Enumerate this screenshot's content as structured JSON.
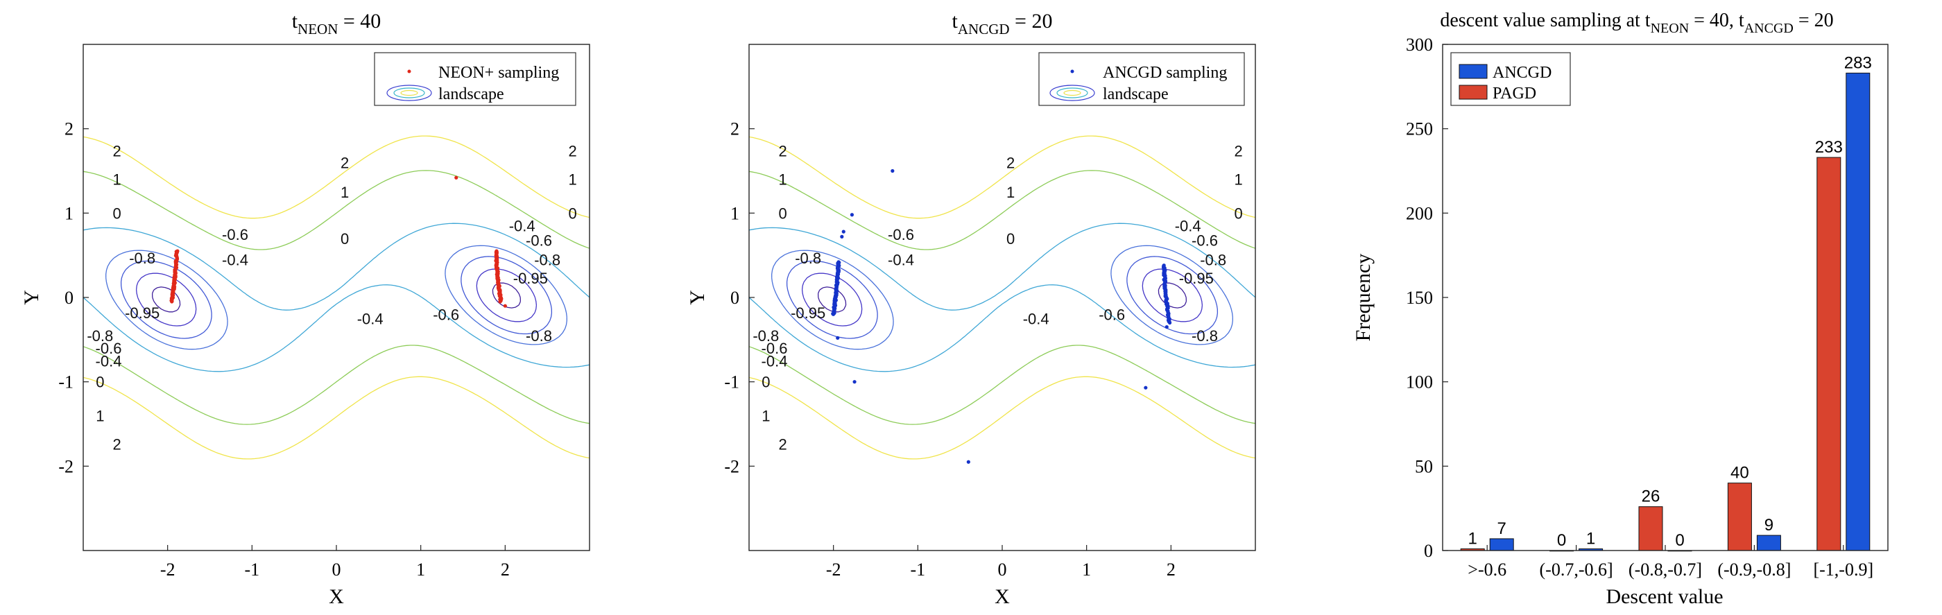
{
  "chart_data": [
    {
      "type": "contour",
      "title_main": "t",
      "title_sub": "NEON",
      "title_rest": " = 40",
      "xlabel": "X",
      "ylabel": "Y",
      "xlim": [
        -3,
        3
      ],
      "ylim": [
        -3,
        3
      ],
      "xticks": [
        -2,
        -1,
        0,
        1,
        2
      ],
      "yticks": [
        -2,
        -1,
        0,
        1,
        2
      ],
      "xtick_labels": [
        "-2",
        "-1",
        "0",
        "1",
        "2"
      ],
      "ytick_labels": [
        "-2",
        "-1",
        "0",
        "1",
        "2"
      ],
      "legend": [
        {
          "label": "NEON+ sampling",
          "color": "#e0281a"
        },
        {
          "label": "landscape",
          "color": "#5b6fd6"
        }
      ],
      "contour_level_labels": [
        "2",
        "2",
        "2",
        "2",
        "1",
        "1",
        "1",
        "1",
        "0",
        "0",
        "0",
        "0",
        "-0.4",
        "-0.4",
        "-0.4",
        "-0.4",
        "-0.6",
        "-0.6",
        "-0.6",
        "-0.6",
        "-0.8",
        "-0.8",
        "-0.8",
        "-0.8",
        "-0.95",
        "-0.95"
      ],
      "samples": {
        "color": "#e0281a",
        "clusters": [
          {
            "x0": -1.95,
            "y_from": -0.05,
            "y_to": 0.55
          },
          {
            "x0": 1.95,
            "y_from": -0.05,
            "y_to": 0.55
          }
        ],
        "points": [
          [
            1.42,
            1.42
          ],
          [
            2.0,
            -0.1
          ]
        ]
      }
    },
    {
      "type": "contour",
      "title_main": "t",
      "title_sub": "ANCGD",
      "title_rest": " = 20",
      "xlabel": "X",
      "ylabel": "Y",
      "xlim": [
        -3,
        3
      ],
      "ylim": [
        -3,
        3
      ],
      "xticks": [
        -2,
        -1,
        0,
        1,
        2
      ],
      "yticks": [
        -2,
        -1,
        0,
        1,
        2
      ],
      "xtick_labels": [
        "-2",
        "-1",
        "0",
        "1",
        "2"
      ],
      "ytick_labels": [
        "-2",
        "-1",
        "0",
        "1",
        "2"
      ],
      "legend": [
        {
          "label": "ANCGD sampling",
          "color": "#1533c9"
        },
        {
          "label": "landscape",
          "color": "#5b6fd6"
        }
      ],
      "contour_level_labels": [
        "2",
        "2",
        "2",
        "2",
        "1",
        "1",
        "1",
        "1",
        "0",
        "0",
        "0",
        "0",
        "-0.4",
        "-0.4",
        "-0.4",
        "-0.4",
        "-0.6",
        "-0.6",
        "-0.6",
        "-0.6",
        "-0.8",
        "-0.8",
        "-0.8",
        "-0.8",
        "-0.95",
        "-0.95"
      ],
      "samples": {
        "color": "#1533c9",
        "clusters": [
          {
            "x0": -2.0,
            "y_from": -0.2,
            "y_to": 0.42
          },
          {
            "x0": 1.98,
            "y_from": -0.3,
            "y_to": 0.38
          }
        ],
        "points": [
          [
            -1.3,
            1.5
          ],
          [
            -1.78,
            0.98
          ],
          [
            -1.88,
            0.78
          ],
          [
            -1.9,
            0.72
          ],
          [
            -1.95,
            -0.48
          ],
          [
            -1.75,
            -1.0
          ],
          [
            -0.4,
            -1.95
          ],
          [
            1.7,
            -1.07
          ],
          [
            1.95,
            -0.35
          ]
        ]
      }
    },
    {
      "type": "bar",
      "title_main": "descent value sampling at t",
      "title_sub1": "NEON",
      "title_mid": " = 40, t",
      "title_sub2": "ANCGD",
      "title_rest": " = 20",
      "xlabel": "Descent value",
      "ylabel": "Frequency",
      "ylim": [
        0,
        300
      ],
      "yticks": [
        0,
        50,
        100,
        150,
        200,
        250,
        300
      ],
      "ytick_labels": [
        "0",
        "50",
        "100",
        "150",
        "200",
        "250",
        "300"
      ],
      "categories": [
        ">-0.6",
        "(-0.7,-0.6]",
        "(-0.8,-0.7]",
        "(-0.9,-0.8]",
        "[-1,-0.9]"
      ],
      "series": [
        {
          "name": "ANCGD",
          "color": "#1a55d8",
          "values": [
            7,
            1,
            0,
            9,
            283
          ],
          "labels": [
            "7",
            "1",
            "0",
            "9",
            "283"
          ]
        },
        {
          "name": "PAGD",
          "color": "#d9432e",
          "values": [
            1,
            0,
            26,
            40,
            233
          ],
          "labels": [
            "1",
            "0",
            "26",
            "40",
            "233"
          ]
        }
      ],
      "legend_position": "top-left"
    }
  ]
}
